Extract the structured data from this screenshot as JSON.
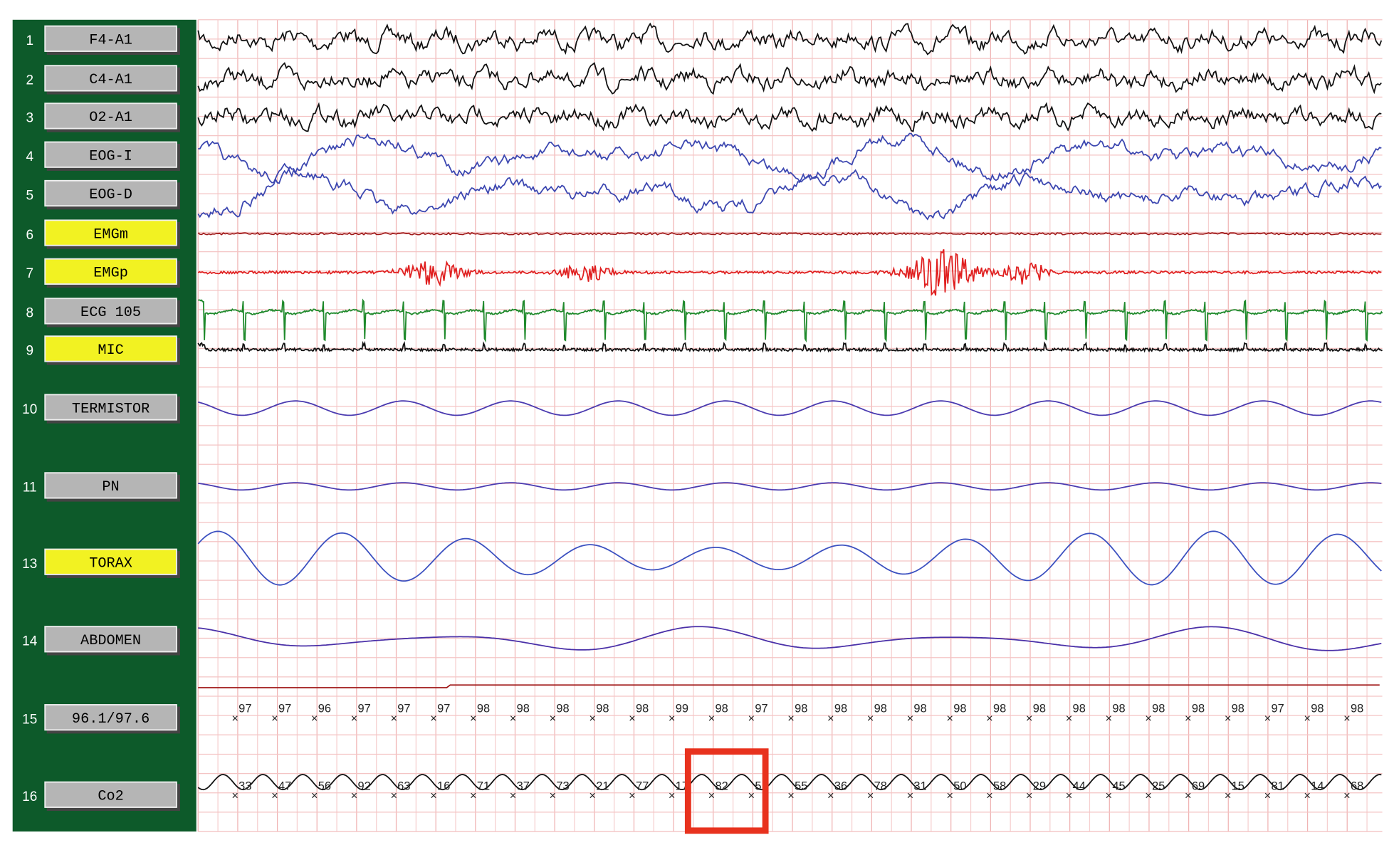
{
  "channels": [
    {
      "number": "1",
      "label": "F4-A1",
      "highlighted": false,
      "color": "#111111"
    },
    {
      "number": "2",
      "label": "C4-A1",
      "highlighted": false,
      "color": "#111111"
    },
    {
      "number": "3",
      "label": "O2-A1",
      "highlighted": false,
      "color": "#111111"
    },
    {
      "number": "4",
      "label": "EOG-I",
      "highlighted": false,
      "color": "#3b46b0"
    },
    {
      "number": "5",
      "label": "EOG-D",
      "highlighted": false,
      "color": "#3b46b0"
    },
    {
      "number": "6",
      "label": "EMGm",
      "highlighted": true,
      "color": "#a01818"
    },
    {
      "number": "7",
      "label": "EMGp",
      "highlighted": true,
      "color": "#e02020"
    },
    {
      "number": "8",
      "label": "ECG 105",
      "highlighted": false,
      "color": "#1f8a2c"
    },
    {
      "number": "9",
      "label": "MIC",
      "highlighted": true,
      "color": "#111111"
    },
    {
      "number": "10",
      "label": "TERMISTOR",
      "highlighted": false,
      "color": "#4a3ab0"
    },
    {
      "number": "11",
      "label": "PN",
      "highlighted": false,
      "color": "#4a3ab0"
    },
    {
      "number": "13",
      "label": "TORAX",
      "highlighted": true,
      "color": "#3b50c0"
    },
    {
      "number": "14",
      "label": "ABDOMEN",
      "highlighted": false,
      "color": "#4a30a8"
    },
    {
      "number": "15",
      "label": "96.1/97.6",
      "highlighted": false,
      "color": "#a01818"
    },
    {
      "number": "16",
      "label": "Co2",
      "highlighted": false,
      "color": "#111111"
    }
  ],
  "spo2_values": [
    97,
    97,
    96,
    97,
    97,
    97,
    98,
    98,
    98,
    98,
    98,
    99,
    98,
    97,
    98,
    98,
    98,
    98,
    98,
    98,
    98,
    98,
    98,
    98,
    98,
    98,
    97,
    98,
    98
  ],
  "co2_values": [
    33,
    47,
    56,
    92,
    63,
    16,
    71,
    37,
    73,
    21,
    77,
    17,
    82,
    5,
    55,
    36,
    78,
    31,
    50,
    58,
    29,
    44,
    45,
    25,
    69,
    15,
    81,
    14,
    68
  ]
}
